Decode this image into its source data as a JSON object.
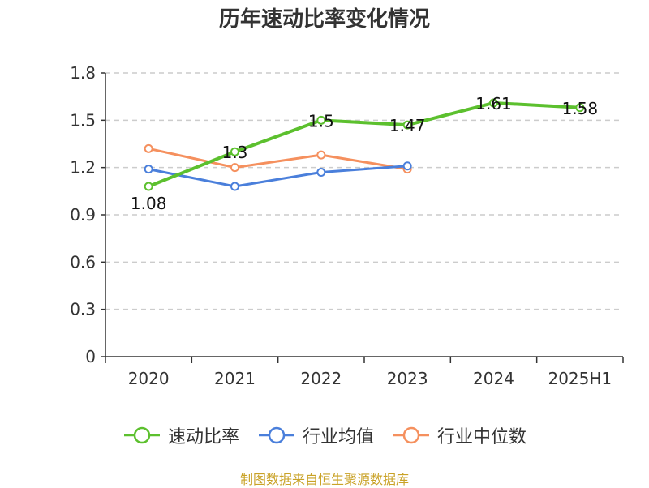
{
  "chart_data": {
    "type": "line",
    "title": "历年速动比率变化情况",
    "categories": [
      "2020",
      "2021",
      "2022",
      "2023",
      "2024",
      "2025H1"
    ],
    "ylim": [
      0,
      1.8
    ],
    "yticks": [
      "0",
      "0.3",
      "0.6",
      "0.9",
      "1.2",
      "1.5",
      "1.8"
    ],
    "grid": true,
    "legend_position": "bottom",
    "series": [
      {
        "name": "速动比率",
        "color": "#5cc02e",
        "values": [
          1.08,
          1.3,
          1.5,
          1.47,
          1.61,
          1.58
        ],
        "labels": [
          "1.08",
          "1.3",
          "1.5",
          "1.47",
          "1.61",
          "1.58"
        ]
      },
      {
        "name": "行业均值",
        "color": "#4a7fdb",
        "values": [
          1.19,
          1.08,
          1.17,
          1.21,
          null,
          null
        ]
      },
      {
        "name": "行业中位数",
        "color": "#f5905e",
        "values": [
          1.32,
          1.2,
          1.28,
          1.19,
          null,
          null
        ]
      }
    ]
  },
  "source": "制图数据来自恒生聚源数据库"
}
